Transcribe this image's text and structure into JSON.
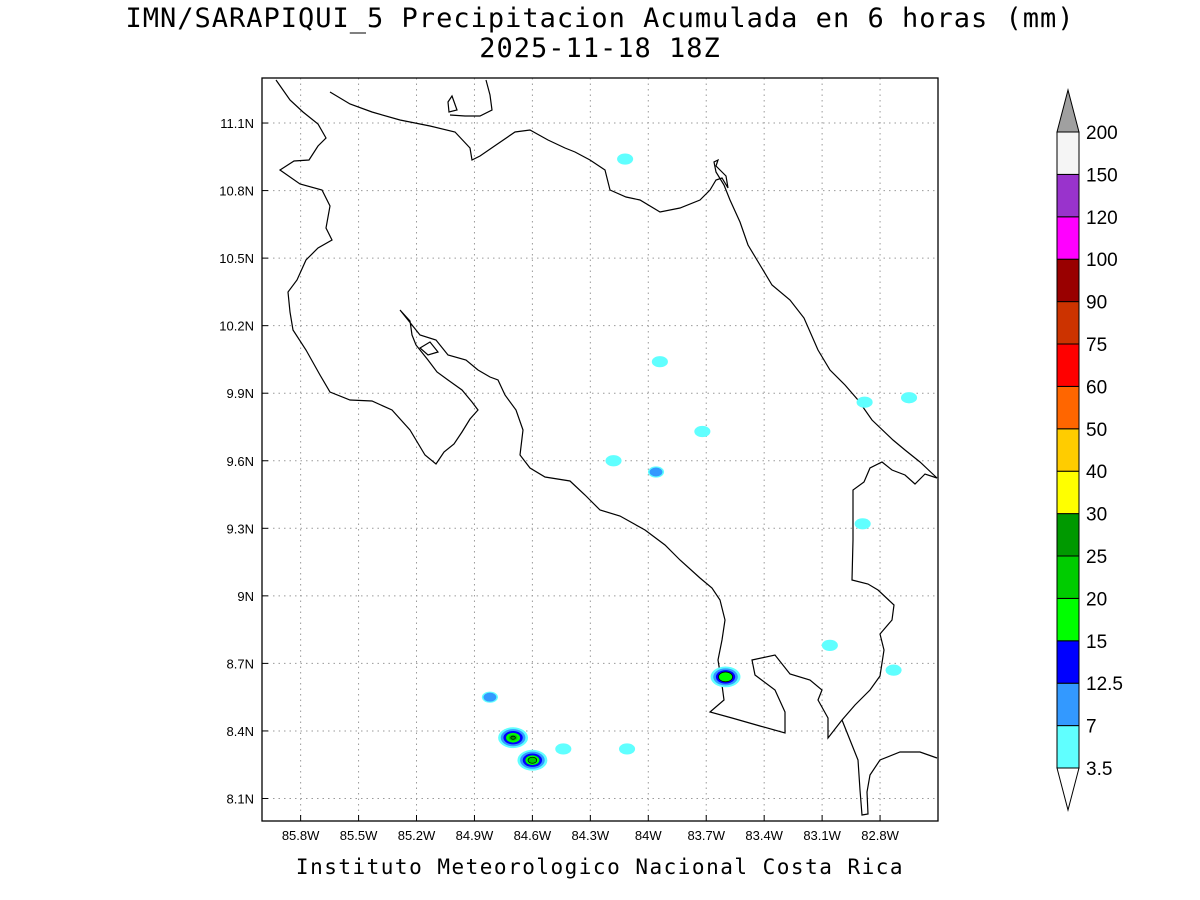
{
  "title": {
    "line1": "IMN/SARAPIQUI_5 Precipitacion Acumulada en 6 horas (mm)",
    "line2": "2025-11-18 18Z"
  },
  "footer": "Instituto Meteorologico Nacional Costa Rica",
  "axes": {
    "lon_ticks": [
      "85.8W",
      "85.5W",
      "85.2W",
      "84.9W",
      "84.6W",
      "84.3W",
      "84W",
      "83.7W",
      "83.4W",
      "83.1W",
      "82.8W"
    ],
    "lat_ticks": [
      "11.1N",
      "10.8N",
      "10.5N",
      "10.2N",
      "9.9N",
      "9.6N",
      "9.3N",
      "9N",
      "8.7N",
      "8.4N",
      "8.1N"
    ],
    "lon_values": [
      -85.8,
      -85.5,
      -85.2,
      -84.9,
      -84.6,
      -84.3,
      -84.0,
      -83.7,
      -83.4,
      -83.1,
      -82.8
    ],
    "lat_values": [
      11.1,
      10.8,
      10.5,
      10.2,
      9.9,
      9.6,
      9.3,
      9.0,
      8.7,
      8.4,
      8.1
    ],
    "lon_range": [
      -86.0,
      -82.5
    ],
    "lat_range": [
      8.0,
      11.3
    ],
    "grid": true
  },
  "colorbar": {
    "units": "mm",
    "levels": [
      "3.5",
      "7",
      "12.5",
      "15",
      "20",
      "25",
      "30",
      "40",
      "50",
      "60",
      "75",
      "90",
      "100",
      "120",
      "150",
      "200"
    ],
    "colors": [
      "#60ffff",
      "#3399ff",
      "#0000ff",
      "#00ff00",
      "#00cc00",
      "#009900",
      "#ffff00",
      "#ffcc00",
      "#ff6600",
      "#ff0000",
      "#cc3300",
      "#990000",
      "#ff00ff",
      "#9933cc",
      "#f5f5f5"
    ],
    "over_color": "#a0a0a0",
    "under_color": "#ffffff"
  },
  "precip_cells": [
    {
      "lon": -83.94,
      "lat": 10.04,
      "mm": 5
    },
    {
      "lon": -84.12,
      "lat": 10.94,
      "mm": 4
    },
    {
      "lon": -84.18,
      "lat": 9.6,
      "mm": 4
    },
    {
      "lon": -83.96,
      "lat": 9.55,
      "mm": 7
    },
    {
      "lon": -83.72,
      "lat": 9.73,
      "mm": 4
    },
    {
      "lon": -82.88,
      "lat": 9.86,
      "mm": 4
    },
    {
      "lon": -82.65,
      "lat": 9.88,
      "mm": 4
    },
    {
      "lon": -82.89,
      "lat": 9.32,
      "mm": 5
    },
    {
      "lon": -83.6,
      "lat": 8.64,
      "mm": 15
    },
    {
      "lon": -82.73,
      "lat": 8.67,
      "mm": 4
    },
    {
      "lon": -83.06,
      "lat": 8.78,
      "mm": 4
    },
    {
      "lon": -84.82,
      "lat": 8.55,
      "mm": 7
    },
    {
      "lon": -84.7,
      "lat": 8.37,
      "mm": 25
    },
    {
      "lon": -84.6,
      "lat": 8.27,
      "mm": 20
    },
    {
      "lon": -84.44,
      "lat": 8.32,
      "mm": 4
    },
    {
      "lon": -84.11,
      "lat": 8.32,
      "mm": 4
    }
  ]
}
